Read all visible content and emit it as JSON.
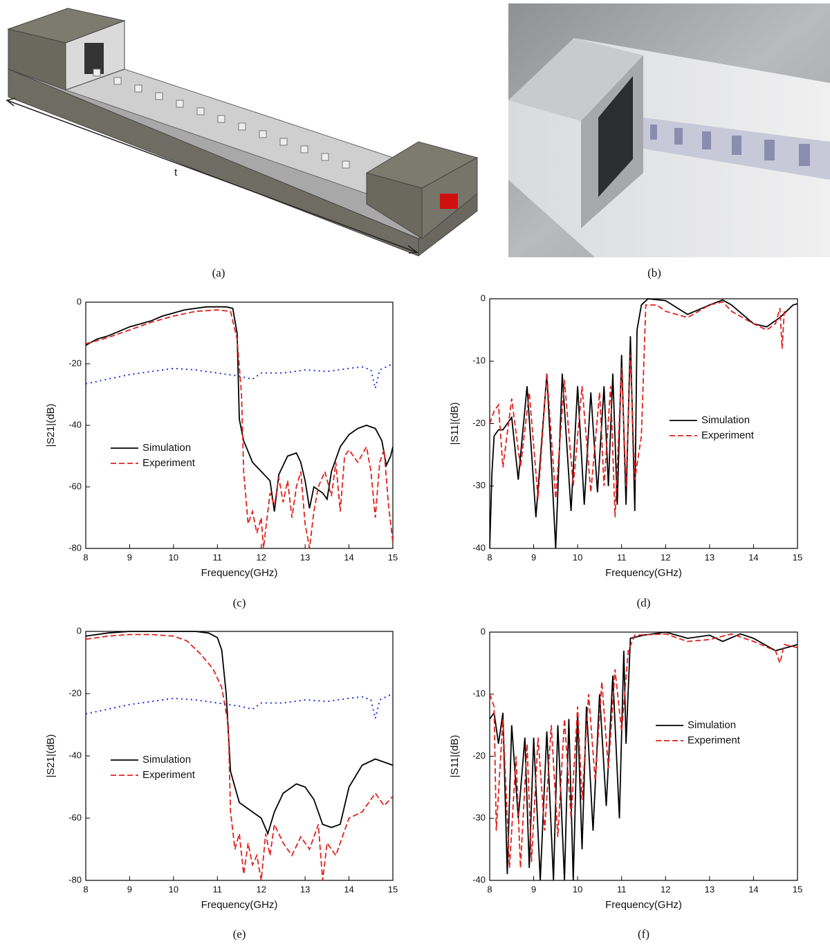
{
  "figure": {
    "captions": [
      "(a)",
      "(b)"
    ],
    "illustration_label": "t"
  },
  "chart_data": [
    {
      "type": "line",
      "caption": "(c)",
      "xlabel": "Frequency(GHz)",
      "ylabel": "|S21|(dB)",
      "xlim": [
        8,
        15
      ],
      "xticks": [
        8,
        9,
        10,
        11,
        12,
        13,
        14,
        15
      ],
      "ylim": [
        -80,
        0
      ],
      "yticks": [
        0,
        -20,
        -40,
        -60,
        -80
      ],
      "series": [
        {
          "name": "Simulation",
          "color": "#000000",
          "line_style": "solid",
          "x": [
            8,
            8.25,
            8.5,
            8.75,
            9,
            9.25,
            9.5,
            9.75,
            10,
            10.25,
            10.5,
            10.75,
            11,
            11.2,
            11.35,
            11.45,
            11.5,
            11.6,
            11.8,
            12,
            12.2,
            12.3,
            12.4,
            12.6,
            12.8,
            12.9,
            13.0,
            13.1,
            13.2,
            13.4,
            13.5,
            13.6,
            13.8,
            14,
            14.2,
            14.4,
            14.6,
            14.75,
            14.85,
            14.95,
            15
          ],
          "values": [
            -14,
            -12,
            -11,
            -9.5,
            -8,
            -7,
            -6,
            -4.5,
            -3.5,
            -2.5,
            -2,
            -1.5,
            -1.5,
            -1.5,
            -2,
            -10,
            -38,
            -45,
            -52,
            -55,
            -58,
            -68,
            -56,
            -50,
            -49,
            -52,
            -58,
            -67,
            -60,
            -62,
            -64,
            -55,
            -47,
            -43,
            -41,
            -40,
            -41,
            -45,
            -53,
            -50,
            -47
          ]
        },
        {
          "name": "Experiment",
          "color": "#e0201b",
          "line_style": "dashed",
          "x": [
            8,
            8.5,
            9,
            9.5,
            10,
            10.5,
            11,
            11.3,
            11.45,
            11.55,
            11.6,
            11.7,
            11.8,
            11.9,
            12,
            12.05,
            12.2,
            12.3,
            12.4,
            12.5,
            12.6,
            12.7,
            12.8,
            12.9,
            13.0,
            13.1,
            13.2,
            13.3,
            13.45,
            13.6,
            13.7,
            13.8,
            13.9,
            14,
            14.2,
            14.4,
            14.5,
            14.6,
            14.7,
            14.8,
            14.9,
            15
          ],
          "values": [
            -13.5,
            -11.5,
            -9,
            -6.5,
            -4.5,
            -3,
            -2.5,
            -3,
            -12,
            -30,
            -55,
            -72,
            -68,
            -75,
            -70,
            -80,
            -62,
            -66,
            -57,
            -65,
            -58,
            -70,
            -60,
            -55,
            -72,
            -80,
            -68,
            -60,
            -55,
            -63,
            -52,
            -68,
            -50,
            -48,
            -52,
            -47,
            -55,
            -70,
            -52,
            -48,
            -66,
            -78
          ]
        },
        {
          "color": "#1f2fd8",
          "line_style": "dotted",
          "x": [
            8,
            8.5,
            9,
            9.5,
            10,
            10.5,
            11,
            11.5,
            11.8,
            12,
            12.5,
            13,
            13.5,
            14,
            14.3,
            14.5,
            14.6,
            14.7,
            15
          ],
          "values": [
            -26.5,
            -25,
            -23.5,
            -22.5,
            -21.5,
            -22,
            -23,
            -24,
            -25,
            -23,
            -23,
            -22,
            -22.5,
            -21.5,
            -21,
            -22,
            -28,
            -22,
            -20
          ]
        }
      ]
    },
    {
      "type": "line",
      "caption": "(d)",
      "xlabel": "Frequency(GHz)",
      "ylabel": "|S11|(dB)",
      "xlim": [
        8,
        15
      ],
      "xticks": [
        8,
        9,
        10,
        11,
        12,
        13,
        14,
        15
      ],
      "ylim": [
        -40,
        0
      ],
      "yticks": [
        0,
        -10,
        -20,
        -30,
        -40
      ],
      "series": [
        {
          "name": "Simulation",
          "color": "#000000",
          "line_style": "solid",
          "x": [
            8,
            8.05,
            8.1,
            8.2,
            8.3,
            8.4,
            8.5,
            8.65,
            8.85,
            9.05,
            9.3,
            9.5,
            9.65,
            9.85,
            10,
            10.15,
            10.3,
            10.45,
            10.6,
            10.7,
            10.8,
            10.9,
            11.0,
            11.1,
            11.2,
            11.3,
            11.35,
            11.45,
            11.6,
            12,
            12.5,
            13,
            13.3,
            13.5,
            14,
            14.3,
            14.6,
            14.9,
            15
          ],
          "values": [
            -40,
            -28,
            -22,
            -21,
            -21,
            -20,
            -19,
            -29,
            -14,
            -35,
            -12,
            -40,
            -12,
            -34,
            -14,
            -33,
            -15,
            -31,
            -14,
            -30,
            -12,
            -33,
            -9,
            -33,
            -6,
            -34,
            -5,
            -1,
            0,
            -0.3,
            -2.5,
            -1,
            -0.2,
            -1,
            -4,
            -4.5,
            -3,
            -1,
            -0.8
          ]
        },
        {
          "name": "Experiment",
          "color": "#e0201b",
          "line_style": "dashed",
          "x": [
            8,
            8.1,
            8.2,
            8.3,
            8.5,
            8.7,
            8.9,
            9.1,
            9.3,
            9.5,
            9.7,
            9.9,
            10.1,
            10.3,
            10.5,
            10.6,
            10.75,
            10.85,
            11,
            11.1,
            11.2,
            11.3,
            11.45,
            11.55,
            11.8,
            12,
            12.5,
            13,
            13.3,
            13.5,
            14,
            14.3,
            14.5,
            14.6,
            14.65,
            14.7
          ],
          "values": [
            -20,
            -18,
            -17,
            -27,
            -16,
            -27,
            -15,
            -32,
            -12,
            -32,
            -13,
            -30,
            -14,
            -31,
            -15,
            -30,
            -14,
            -35,
            -11,
            -30,
            -9,
            -29,
            -22,
            -1,
            -1,
            -2,
            -3,
            -1,
            -0.5,
            -2,
            -4,
            -5,
            -4,
            -1.5,
            -8,
            -2
          ]
        }
      ]
    },
    {
      "type": "line",
      "caption": "(e)",
      "xlabel": "Frequency(GHz)",
      "ylabel": "|S21|(dB)",
      "xlim": [
        8,
        15
      ],
      "xticks": [
        8,
        9,
        10,
        11,
        12,
        13,
        14,
        15
      ],
      "ylim": [
        -80,
        0
      ],
      "yticks": [
        0,
        -20,
        -40,
        -60,
        -80
      ],
      "series": [
        {
          "name": "Simulation",
          "color": "#000000",
          "line_style": "solid",
          "x": [
            8,
            8.5,
            9,
            10,
            10.5,
            10.8,
            11,
            11.1,
            11.2,
            11.3,
            11.5,
            11.7,
            12,
            12.15,
            12.3,
            12.5,
            12.8,
            13,
            13.2,
            13.4,
            13.6,
            13.8,
            14,
            14.3,
            14.6,
            14.8,
            15
          ],
          "values": [
            -1.5,
            -0.5,
            0,
            0,
            0,
            -0.5,
            -2,
            -6,
            -20,
            -45,
            -55,
            -57,
            -60,
            -65,
            -58,
            -52,
            -49,
            -50,
            -54,
            -62,
            -63,
            -62,
            -50,
            -43,
            -41,
            -42,
            -43
          ]
        },
        {
          "name": "Experiment",
          "color": "#e0201b",
          "line_style": "dashed",
          "x": [
            8,
            8.5,
            9,
            9.5,
            10,
            10.3,
            10.6,
            10.9,
            11.1,
            11.25,
            11.3,
            11.4,
            11.5,
            11.6,
            11.7,
            11.8,
            11.9,
            12,
            12.1,
            12.2,
            12.3,
            12.5,
            12.7,
            12.9,
            13.1,
            13.3,
            13.4,
            13.5,
            13.7,
            13.9,
            14,
            14.3,
            14.6,
            14.8,
            15
          ],
          "values": [
            -2.5,
            -1.5,
            -1,
            -1,
            -1.5,
            -3,
            -7,
            -12,
            -18,
            -30,
            -58,
            -70,
            -65,
            -78,
            -68,
            -75,
            -72,
            -80,
            -65,
            -72,
            -62,
            -68,
            -72,
            -66,
            -70,
            -62,
            -80,
            -68,
            -72,
            -64,
            -60,
            -58,
            -52,
            -56,
            -53
          ]
        },
        {
          "color": "#1f2fd8",
          "line_style": "dotted",
          "x": [
            8,
            8.5,
            9,
            9.5,
            10,
            10.5,
            11,
            11.5,
            11.8,
            12,
            12.5,
            13,
            13.5,
            14,
            14.3,
            14.5,
            14.6,
            14.7,
            15
          ],
          "values": [
            -26.5,
            -25,
            -23.5,
            -22.5,
            -21.5,
            -22,
            -23,
            -24,
            -25,
            -23,
            -23,
            -22,
            -22.5,
            -21.5,
            -21,
            -22,
            -28,
            -22,
            -20
          ]
        }
      ]
    },
    {
      "type": "line",
      "caption": "(f)",
      "xlabel": "Frequency(GHz)",
      "ylabel": "|S11|(dB)",
      "xlim": [
        8,
        15
      ],
      "xticks": [
        8,
        9,
        10,
        11,
        12,
        13,
        14,
        15
      ],
      "ylim": [
        -40,
        0
      ],
      "yticks": [
        0,
        -10,
        -20,
        -30,
        -40
      ],
      "series": [
        {
          "name": "Simulation",
          "color": "#000000",
          "line_style": "solid",
          "x": [
            8,
            8.1,
            8.2,
            8.3,
            8.4,
            8.5,
            8.65,
            8.8,
            8.9,
            9.0,
            9.15,
            9.3,
            9.45,
            9.55,
            9.7,
            9.8,
            9.9,
            10.0,
            10.1,
            10.2,
            10.35,
            10.5,
            10.65,
            10.8,
            10.95,
            11.05,
            11.1,
            11.2,
            11.5,
            12,
            12.5,
            13,
            13.3,
            13.7,
            14,
            14.5,
            15
          ],
          "values": [
            -14,
            -13,
            -18,
            -13,
            -39,
            -15,
            -30,
            -17,
            -38,
            -17,
            -40,
            -16,
            -40,
            -15,
            -40,
            -14,
            -40,
            -13,
            -35,
            -12,
            -32,
            -10,
            -28,
            -7,
            -30,
            -3,
            -18,
            -1,
            -0.5,
            0,
            -1,
            -0.5,
            -1.5,
            -0.3,
            -1,
            -3,
            -2
          ]
        },
        {
          "name": "Experiment",
          "color": "#e0201b",
          "line_style": "dashed",
          "x": [
            8,
            8.1,
            8.15,
            8.3,
            8.45,
            8.6,
            8.7,
            8.85,
            8.95,
            9.1,
            9.25,
            9.4,
            9.55,
            9.7,
            9.85,
            10,
            10.1,
            10.25,
            10.4,
            10.55,
            10.7,
            10.85,
            11.0,
            11.15,
            11.3,
            12,
            12.5,
            13,
            13.5,
            14,
            14.5,
            14.6,
            14.7,
            15
          ],
          "values": [
            -10,
            -12,
            -32,
            -14,
            -38,
            -20,
            -38,
            -18,
            -37,
            -17,
            -32,
            -15,
            -33,
            -14,
            -30,
            -12,
            -27,
            -10,
            -24,
            -8,
            -22,
            -6,
            -16,
            -3,
            -0.5,
            -0.3,
            -1.5,
            -1.2,
            -0.3,
            -1.5,
            -3,
            -5,
            -2,
            -2.5
          ]
        }
      ]
    }
  ]
}
